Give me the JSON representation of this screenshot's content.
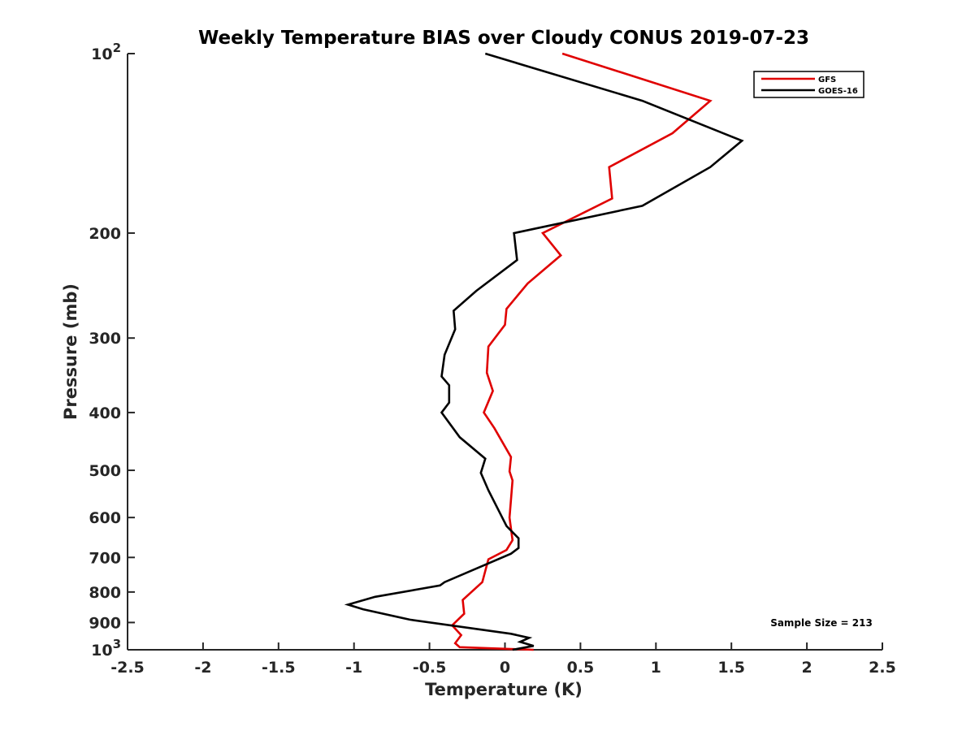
{
  "chart_data": {
    "type": "line",
    "title": "Weekly Temperature BIAS over Cloudy CONUS 2019-07-23",
    "xlabel": "Temperature (K)",
    "ylabel": "Pressure (mb)",
    "xlim": [
      -2.5,
      2.5
    ],
    "ylim": [
      100,
      1000
    ],
    "y_scale": "log",
    "y_reversed": true,
    "grid": false,
    "legend_position": "top-right",
    "x_ticks": [
      {
        "value": -2.5,
        "label": "-2.5"
      },
      {
        "value": -2,
        "label": "-2"
      },
      {
        "value": -1.5,
        "label": "-1.5"
      },
      {
        "value": -1,
        "label": "-1"
      },
      {
        "value": -0.5,
        "label": "-0.5"
      },
      {
        "value": 0,
        "label": "0"
      },
      {
        "value": 0.5,
        "label": "0.5"
      },
      {
        "value": 1,
        "label": "1"
      },
      {
        "value": 1.5,
        "label": "1.5"
      },
      {
        "value": 2,
        "label": "2"
      },
      {
        "value": 2.5,
        "label": "2.5"
      }
    ],
    "y_ticks": [
      {
        "value": 100,
        "label": "10",
        "sup": "2"
      },
      {
        "value": 200,
        "label": "200"
      },
      {
        "value": 300,
        "label": "300"
      },
      {
        "value": 400,
        "label": "400"
      },
      {
        "value": 500,
        "label": "500"
      },
      {
        "value": 600,
        "label": "600"
      },
      {
        "value": 700,
        "label": "700"
      },
      {
        "value": 800,
        "label": "800"
      },
      {
        "value": 900,
        "label": "900"
      },
      {
        "value": 1000,
        "label": "10",
        "sup": "3"
      }
    ],
    "series": [
      {
        "name": "GFS",
        "color": "#e00000",
        "points": [
          [
            0.38,
            100
          ],
          [
            1.36,
            120
          ],
          [
            1.11,
            136
          ],
          [
            0.69,
            155
          ],
          [
            0.71,
            175
          ],
          [
            0.25,
            200
          ],
          [
            0.37,
            218
          ],
          [
            0.15,
            243
          ],
          [
            0.01,
            268
          ],
          [
            0.0,
            285
          ],
          [
            -0.11,
            310
          ],
          [
            -0.12,
            343
          ],
          [
            -0.08,
            368
          ],
          [
            -0.14,
            400
          ],
          [
            -0.07,
            425
          ],
          [
            0.04,
            475
          ],
          [
            0.03,
            502
          ],
          [
            0.05,
            520
          ],
          [
            0.04,
            560
          ],
          [
            0.03,
            600
          ],
          [
            0.05,
            655
          ],
          [
            0.01,
            680
          ],
          [
            -0.11,
            705
          ],
          [
            -0.15,
            770
          ],
          [
            -0.28,
            825
          ],
          [
            -0.27,
            870
          ],
          [
            -0.35,
            910
          ],
          [
            -0.29,
            945
          ],
          [
            -0.33,
            975
          ],
          [
            -0.3,
            990
          ],
          [
            0.19,
            1000
          ]
        ]
      },
      {
        "name": "GOES-16",
        "color": "#000000",
        "points": [
          [
            -0.13,
            100
          ],
          [
            0.91,
            120
          ],
          [
            1.57,
            140
          ],
          [
            1.36,
            155
          ],
          [
            0.91,
            180
          ],
          [
            0.06,
            200
          ],
          [
            0.08,
            222
          ],
          [
            -0.19,
            250
          ],
          [
            -0.34,
            270
          ],
          [
            -0.33,
            290
          ],
          [
            -0.4,
            320
          ],
          [
            -0.42,
            348
          ],
          [
            -0.37,
            360
          ],
          [
            -0.37,
            385
          ],
          [
            -0.42,
            400
          ],
          [
            -0.3,
            440
          ],
          [
            -0.13,
            478
          ],
          [
            -0.16,
            505
          ],
          [
            -0.11,
            540
          ],
          [
            0.01,
            620
          ],
          [
            0.09,
            650
          ],
          [
            0.09,
            675
          ],
          [
            0.04,
            690
          ],
          [
            -0.4,
            770
          ],
          [
            -0.43,
            780
          ],
          [
            -0.86,
            815
          ],
          [
            -1.04,
            840
          ],
          [
            -0.94,
            855
          ],
          [
            -0.63,
            890
          ],
          [
            0.04,
            940
          ],
          [
            0.16,
            955
          ],
          [
            0.1,
            970
          ],
          [
            0.19,
            985
          ],
          [
            0.05,
            1000
          ]
        ]
      }
    ],
    "annotation": "Sample Size = 213"
  }
}
